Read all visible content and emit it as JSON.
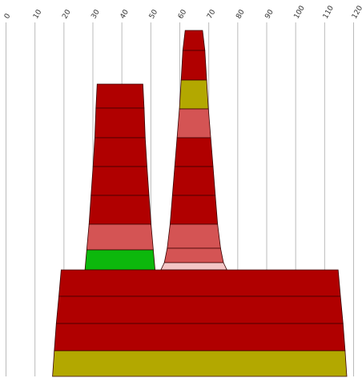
{
  "chart_data": {
    "type": "area",
    "title": "",
    "xlabel": "",
    "ylabel": "",
    "xlim": [
      0,
      120
    ],
    "x_ticks": [
      0,
      10,
      20,
      30,
      40,
      50,
      60,
      70,
      80,
      90,
      100,
      110,
      120
    ],
    "x_tick_labels": [
      "0",
      "10",
      "20",
      "30",
      "40",
      "50",
      "60",
      "70",
      "80",
      "90",
      "100",
      "110",
      "120"
    ],
    "grid": true,
    "legend": "none",
    "colors": {
      "dark_red": "#b00000",
      "salmon": "#d45454",
      "olive": "#b3a800",
      "green": "#0cb80c",
      "pink": "#f4c6c6"
    },
    "shapes": [
      {
        "name": "left-tower",
        "bands": [
          {
            "left_bottom": 31.2,
            "right_bottom": 47.8,
            "left_top": 31.6,
            "right_top": 47.4,
            "color": "dark_red"
          },
          {
            "left_bottom": 30.8,
            "right_bottom": 48.2,
            "left_top": 31.2,
            "right_top": 47.8,
            "color": "dark_red"
          },
          {
            "left_bottom": 30.2,
            "right_bottom": 48.8,
            "left_top": 30.8,
            "right_top": 48.2,
            "color": "dark_red"
          },
          {
            "left_bottom": 29.5,
            "right_bottom": 49.5,
            "left_top": 30.2,
            "right_top": 48.8,
            "color": "dark_red"
          },
          {
            "left_bottom": 28.8,
            "right_bottom": 50.2,
            "left_top": 29.5,
            "right_top": 49.5,
            "color": "dark_red"
          },
          {
            "left_bottom": 28.0,
            "right_bottom": 51.0,
            "left_top": 28.8,
            "right_top": 50.2,
            "color": "salmon"
          },
          {
            "left_bottom": 27.4,
            "right_bottom": 51.6,
            "left_top": 28.0,
            "right_top": 51.0,
            "color": "green"
          }
        ]
      },
      {
        "name": "right-tower",
        "bands": [
          {
            "left_bottom": 61.2,
            "right_bottom": 68.8,
            "left_top": 62.0,
            "right_top": 68.0,
            "color": "dark_red"
          },
          {
            "left_bottom": 60.6,
            "right_bottom": 69.4,
            "left_top": 61.2,
            "right_top": 68.8,
            "color": "dark_red"
          },
          {
            "left_bottom": 60.0,
            "right_bottom": 70.0,
            "left_top": 60.6,
            "right_top": 69.4,
            "color": "olive"
          },
          {
            "left_bottom": 59.2,
            "right_bottom": 70.8,
            "left_top": 60.0,
            "right_top": 70.0,
            "color": "salmon"
          },
          {
            "left_bottom": 58.4,
            "right_bottom": 71.6,
            "left_top": 59.2,
            "right_top": 70.8,
            "color": "dark_red"
          },
          {
            "left_bottom": 57.6,
            "right_bottom": 72.4,
            "left_top": 58.4,
            "right_top": 71.6,
            "color": "dark_red"
          },
          {
            "left_bottom": 56.8,
            "right_bottom": 73.2,
            "left_top": 57.6,
            "right_top": 72.4,
            "color": "dark_red"
          },
          {
            "left_bottom": 55.8,
            "right_bottom": 74.2,
            "left_top": 56.8,
            "right_top": 73.2,
            "color": "salmon"
          },
          {
            "left_bottom": 54.8,
            "right_bottom": 75.2,
            "left_top": 55.8,
            "right_top": 74.2,
            "color": "salmon"
          },
          {
            "left_bottom": 53.6,
            "right_bottom": 76.4,
            "left_top": 54.8,
            "right_top": 75.2,
            "color": "pink"
          }
        ]
      },
      {
        "name": "base-block",
        "bands": [
          {
            "left_bottom": 18.4,
            "right_bottom": 115.6,
            "left_top": 19.2,
            "right_top": 114.8,
            "color": "dark_red"
          },
          {
            "left_bottom": 17.5,
            "right_bottom": 116.5,
            "left_top": 18.4,
            "right_top": 115.6,
            "color": "dark_red"
          },
          {
            "left_bottom": 16.8,
            "right_bottom": 117.2,
            "left_top": 17.5,
            "right_top": 116.5,
            "color": "dark_red"
          },
          {
            "left_bottom": 16.2,
            "right_bottom": 117.8,
            "left_top": 16.8,
            "right_top": 117.2,
            "color": "olive"
          }
        ]
      }
    ]
  }
}
